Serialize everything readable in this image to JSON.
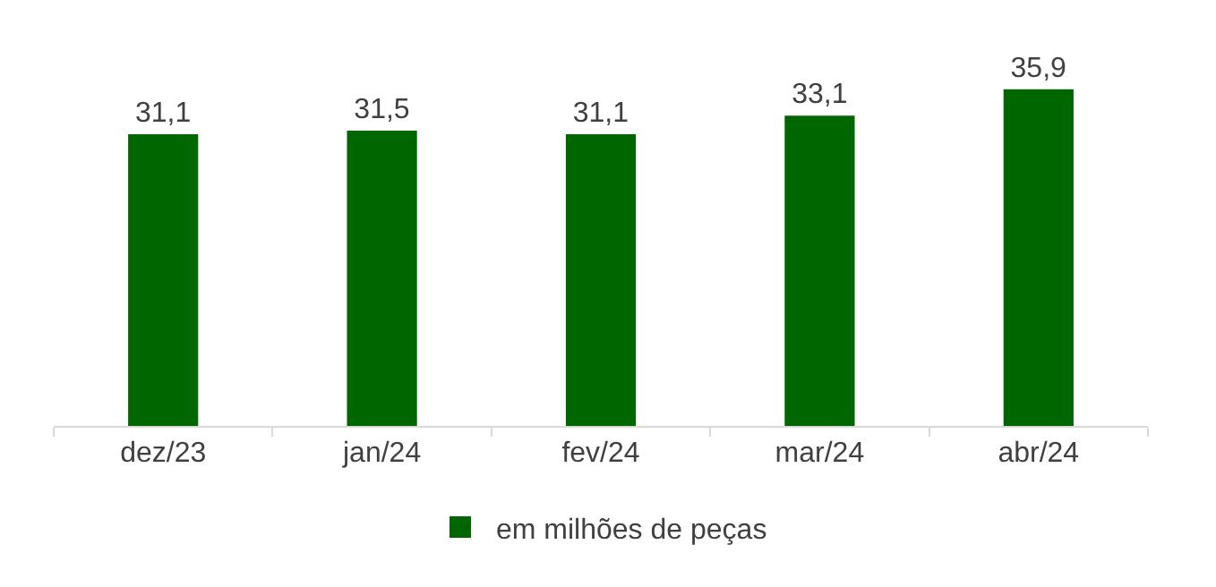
{
  "chart_data": {
    "type": "bar",
    "categories": [
      "dez/23",
      "jan/24",
      "fev/24",
      "mar/24",
      "abr/24"
    ],
    "series": [
      {
        "name": "em milhões de peças",
        "color": "#006600",
        "values": [
          31.1,
          31.5,
          31.1,
          33.1,
          35.9
        ],
        "value_labels": [
          "31,1",
          "31,5",
          "31,1",
          "33,1",
          "35,9"
        ]
      }
    ],
    "legend": "bottom",
    "grid": false,
    "tick_labels": "x"
  }
}
